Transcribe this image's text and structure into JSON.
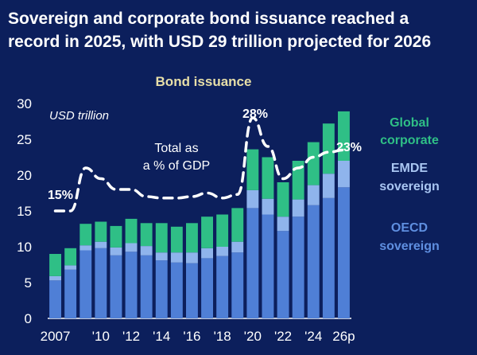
{
  "title_line1": "Sovereign and corporate bond issuance reached a",
  "title_line2": "record in 2025, with USD 29 trillion projected for 2026",
  "chart_data": {
    "type": "bar",
    "stacked": true,
    "title": "Bond issuance",
    "unit_label": "USD trillion",
    "ylim": [
      0,
      30
    ],
    "yticks": [
      0,
      5,
      10,
      15,
      20,
      25,
      30
    ],
    "x_tick_labels": [
      "2007",
      "'10",
      "'12",
      "'14",
      "'16",
      "'18",
      "'20",
      "'22",
      "'24",
      "26p"
    ],
    "categories": [
      "2007",
      "2008",
      "2009",
      "2010",
      "2011",
      "2012",
      "2013",
      "2014",
      "2015",
      "2016",
      "2017",
      "2018",
      "2019",
      "2020",
      "2021",
      "2022",
      "2023",
      "2024",
      "2025",
      "2026p"
    ],
    "series": [
      {
        "name": "OECD sovereign",
        "color": "#4f7fd6",
        "values": [
          5.3,
          6.8,
          9.5,
          9.8,
          8.8,
          9.3,
          8.8,
          8.1,
          7.8,
          7.7,
          8.4,
          8.7,
          9.2,
          15.4,
          14.5,
          12.2,
          14.2,
          15.8,
          16.8,
          18.3
        ]
      },
      {
        "name": "EMDE sovereign",
        "color": "#8fb4ec",
        "values": [
          0.6,
          0.6,
          0.7,
          0.9,
          1.1,
          1.2,
          1.3,
          1.1,
          1.4,
          1.5,
          1.4,
          1.3,
          1.5,
          2.5,
          2.2,
          2.0,
          2.4,
          2.8,
          3.4,
          3.7
        ]
      },
      {
        "name": "Global corporate",
        "color": "#2fbf86",
        "values": [
          3.1,
          2.4,
          3.0,
          2.8,
          3.0,
          3.4,
          3.2,
          4.1,
          3.6,
          4.1,
          4.4,
          4.5,
          4.7,
          5.7,
          5.8,
          4.8,
          5.4,
          6.0,
          7.0,
          6.9
        ]
      }
    ],
    "gdp_share_line": {
      "label_line1": "Total as",
      "label_line2": "a % of GDP",
      "style": "dashed",
      "color": "#ffffff",
      "values_relative": [
        15,
        15,
        21,
        19.5,
        18,
        18,
        17,
        16.8,
        16.8,
        17,
        17.5,
        16.8,
        17.3,
        28,
        24,
        19.5,
        21,
        22.5,
        23.2,
        23.5
      ]
    },
    "annotations": {
      "start": "15%",
      "peak": "28%",
      "end": "23%"
    },
    "legend_order": [
      "Global corporate",
      "EMDE sovereign",
      "OECD sovereign"
    ],
    "legend_lines": {
      "global_corporate": [
        "Global",
        "corporate"
      ],
      "emde_sovereign": [
        "EMDE",
        "sovereign"
      ],
      "oecd_sovereign": [
        "OECD",
        "sovereign"
      ]
    },
    "legend_placement": "right"
  }
}
